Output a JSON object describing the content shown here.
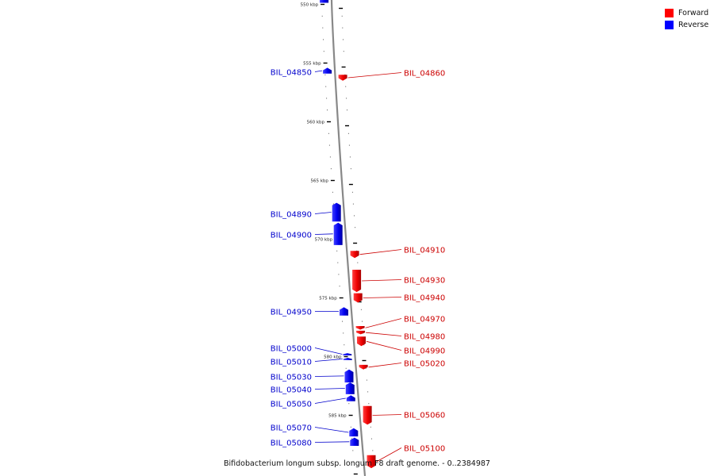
{
  "legend": {
    "items": [
      {
        "label": "Forward",
        "color": "#ff0000"
      },
      {
        "label": "Reverse",
        "color": "#0000ff"
      }
    ]
  },
  "caption": "Bifidobacterium longum subsp. longum F8 draft genome. - 0..2384987",
  "chart_data": {
    "type": "genome-map",
    "axis": {
      "unit": "kbp",
      "tick_labels": [
        "550 kbp",
        "555 kbp",
        "560 kbp",
        "565 kbp",
        "570 kbp",
        "575 kbp",
        "580 kbp",
        "585 kbp"
      ],
      "tick_values": [
        550,
        555,
        560,
        565,
        570,
        575,
        580,
        585
      ]
    },
    "genes": [
      {
        "name": "BIL_04850",
        "strand": "reverse",
        "start": 555.4,
        "end": 555.9
      },
      {
        "name": "BIL_04860",
        "strand": "forward",
        "start": 556.0,
        "end": 556.5
      },
      {
        "name": "BIL_04890",
        "strand": "reverse",
        "start": 566.9,
        "end": 568.5
      },
      {
        "name": "BIL_04900",
        "strand": "reverse",
        "start": 568.6,
        "end": 570.5
      },
      {
        "name": "BIL_04910",
        "strand": "forward",
        "start": 571.0,
        "end": 571.6
      },
      {
        "name": "BIL_04930",
        "strand": "forward",
        "start": 572.6,
        "end": 574.5
      },
      {
        "name": "BIL_04940",
        "strand": "forward",
        "start": 574.6,
        "end": 575.4
      },
      {
        "name": "BIL_04950",
        "strand": "reverse",
        "start": 575.8,
        "end": 576.5
      },
      {
        "name": "BIL_04970",
        "strand": "forward",
        "start": 577.4,
        "end": 577.7
      },
      {
        "name": "BIL_04980",
        "strand": "forward",
        "start": 577.8,
        "end": 578.1
      },
      {
        "name": "BIL_04990",
        "strand": "forward",
        "start": 578.3,
        "end": 579.1
      },
      {
        "name": "BIL_05000",
        "strand": "reverse",
        "start": 579.7,
        "end": 579.9
      },
      {
        "name": "BIL_05010",
        "strand": "reverse",
        "start": 580.1,
        "end": 580.3
      },
      {
        "name": "BIL_05020",
        "strand": "forward",
        "start": 580.7,
        "end": 581.1
      },
      {
        "name": "BIL_05030",
        "strand": "reverse",
        "start": 581.1,
        "end": 582.2
      },
      {
        "name": "BIL_05040",
        "strand": "reverse",
        "start": 582.2,
        "end": 583.2
      },
      {
        "name": "BIL_05050",
        "strand": "reverse",
        "start": 583.3,
        "end": 583.8
      },
      {
        "name": "BIL_05060",
        "strand": "forward",
        "start": 584.2,
        "end": 585.8
      },
      {
        "name": "BIL_05070",
        "strand": "reverse",
        "start": 586.1,
        "end": 586.8
      },
      {
        "name": "BIL_05080",
        "strand": "reverse",
        "start": 586.9,
        "end": 587.6
      },
      {
        "name": "BIL_05100",
        "strand": "forward",
        "start": 588.4,
        "end": 589.5
      }
    ]
  }
}
